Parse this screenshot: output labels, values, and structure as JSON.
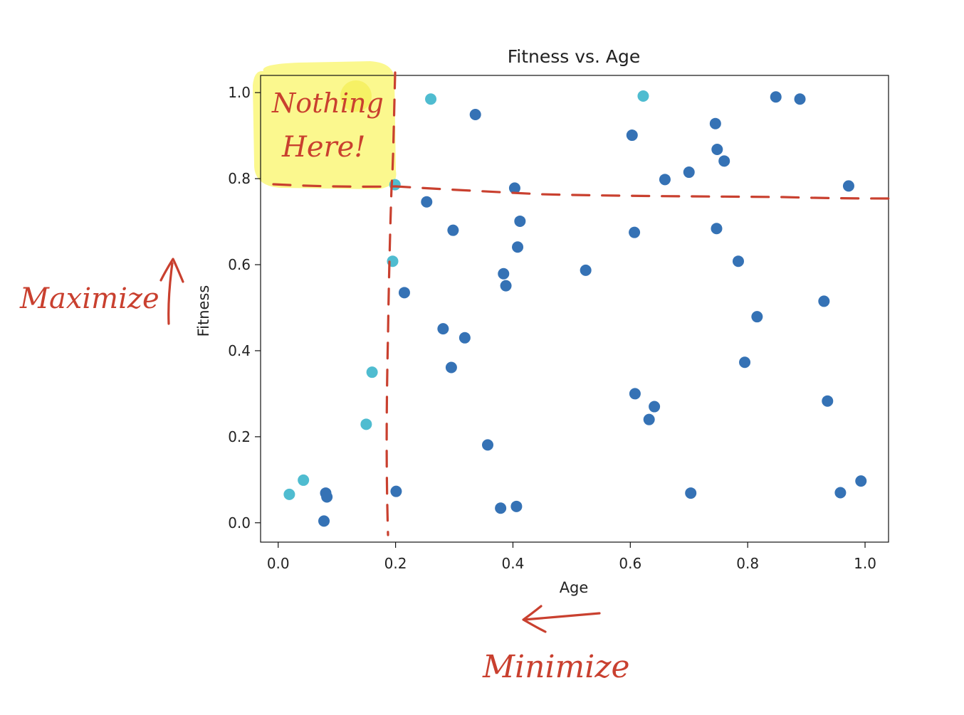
{
  "chart_data": {
    "type": "scatter",
    "title": "Fitness vs. Age",
    "xlabel": "Age",
    "ylabel": "Fitness",
    "xlim": [
      -0.03,
      1.04
    ],
    "ylim": [
      -0.045,
      1.04
    ],
    "xticks": [
      "0.0",
      "0.2",
      "0.4",
      "0.6",
      "0.8",
      "1.0"
    ],
    "xtick_values": [
      0.0,
      0.2,
      0.4,
      0.6,
      0.8,
      1.0
    ],
    "yticks": [
      "0.0",
      "0.2",
      "0.4",
      "0.6",
      "0.8",
      "1.0"
    ],
    "ytick_values": [
      0.0,
      0.2,
      0.4,
      0.6,
      0.8,
      1.0
    ],
    "grid": false,
    "series": [
      {
        "color": "#3572b5",
        "points": [
          [
            0.336,
            0.949
          ],
          [
            0.603,
            0.901
          ],
          [
            0.745,
            0.928
          ],
          [
            0.848,
            0.99
          ],
          [
            0.889,
            0.985
          ],
          [
            0.748,
            0.868
          ],
          [
            0.76,
            0.841
          ],
          [
            0.7,
            0.815
          ],
          [
            0.659,
            0.798
          ],
          [
            0.403,
            0.778
          ],
          [
            0.972,
            0.783
          ],
          [
            0.253,
            0.746
          ],
          [
            0.412,
            0.701
          ],
          [
            0.298,
            0.68
          ],
          [
            0.607,
            0.675
          ],
          [
            0.747,
            0.684
          ],
          [
            0.408,
            0.641
          ],
          [
            0.784,
            0.608
          ],
          [
            0.524,
            0.587
          ],
          [
            0.384,
            0.579
          ],
          [
            0.388,
            0.551
          ],
          [
            0.215,
            0.535
          ],
          [
            0.93,
            0.515
          ],
          [
            0.816,
            0.479
          ],
          [
            0.281,
            0.451
          ],
          [
            0.318,
            0.43
          ],
          [
            0.795,
            0.373
          ],
          [
            0.295,
            0.361
          ],
          [
            0.608,
            0.3
          ],
          [
            0.641,
            0.27
          ],
          [
            0.632,
            0.24
          ],
          [
            0.936,
            0.283
          ],
          [
            0.357,
            0.181
          ],
          [
            0.081,
            0.069
          ],
          [
            0.083,
            0.06
          ],
          [
            0.201,
            0.073
          ],
          [
            0.703,
            0.069
          ],
          [
            0.958,
            0.07
          ],
          [
            0.993,
            0.097
          ],
          [
            0.078,
            0.004
          ],
          [
            0.379,
            0.034
          ],
          [
            0.406,
            0.038
          ]
        ]
      },
      {
        "color": "#4fbcd0",
        "points": [
          [
            0.26,
            0.985
          ],
          [
            0.622,
            0.992
          ],
          [
            0.199,
            0.786
          ],
          [
            0.195,
            0.608
          ],
          [
            0.16,
            0.35
          ],
          [
            0.15,
            0.229
          ],
          [
            0.043,
            0.099
          ],
          [
            0.019,
            0.066
          ]
        ]
      }
    ],
    "annotations": {
      "highlight_text": [
        "Nothing",
        "Here!"
      ],
      "y_direction": "Maximize",
      "x_direction": "Minimize"
    }
  }
}
